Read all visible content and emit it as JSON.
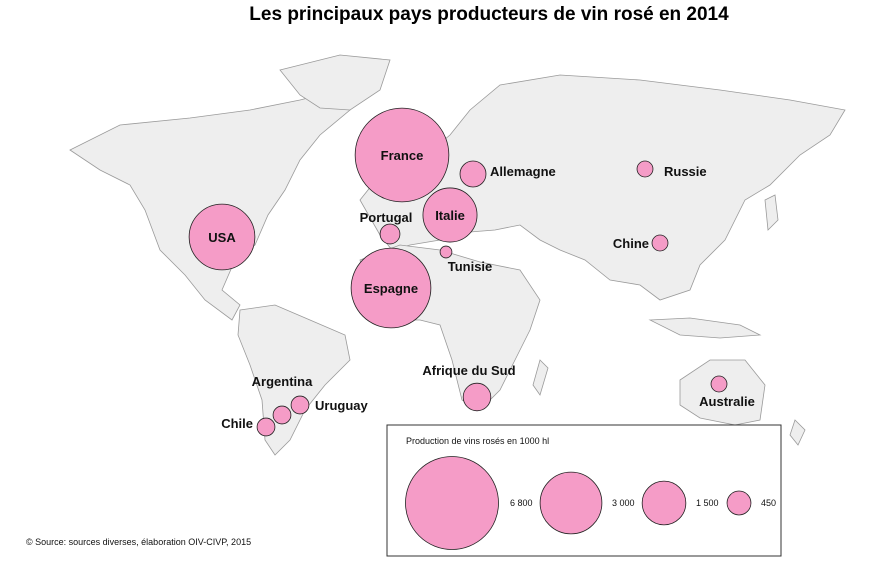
{
  "title": "Les principaux pays producteurs de vin rosé en 2014",
  "source": "© Source: sources diverses, élaboration OIV-CIVP, 2015",
  "colors": {
    "bubble": "#f59cc7",
    "bubble_stroke": "#222222",
    "land": "#eeeeee",
    "border": "#9a9a9a"
  },
  "chart_data": {
    "type": "proportional-symbol-map",
    "title": "Les principaux pays producteurs de vin rosé en 2014",
    "unit": "1000 hl",
    "countries": [
      {
        "name": "France",
        "value": 6900
      },
      {
        "name": "Espagne",
        "value": 5000
      },
      {
        "name": "USA",
        "value": 3400
      },
      {
        "name": "Italie",
        "value": 2300
      },
      {
        "name": "Afrique du Sud",
        "value": 600
      },
      {
        "name": "Allemagne",
        "value": 530
      },
      {
        "name": "Portugal",
        "value": 310
      },
      {
        "name": "Argentina",
        "value": 250
      },
      {
        "name": "Uruguay",
        "value": 250
      },
      {
        "name": "Chile",
        "value": 250
      },
      {
        "name": "Russie",
        "value": 200
      },
      {
        "name": "Chine",
        "value": 200
      },
      {
        "name": "Australie",
        "value": 200
      },
      {
        "name": "Tunisie",
        "value": 110
      }
    ],
    "legend": {
      "title": "Production de vins rosés en 1000 hl",
      "values": [
        6800,
        3000,
        1500,
        450
      ],
      "labels": [
        "6 800",
        "3 000",
        "1 500",
        "450"
      ],
      "placement": "bottom-right"
    }
  }
}
